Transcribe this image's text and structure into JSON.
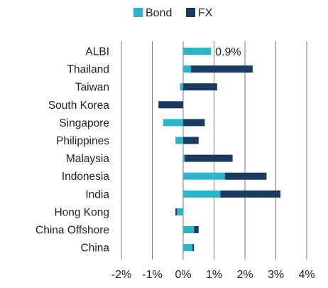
{
  "chart_data": {
    "type": "bar",
    "orientation": "horizontal",
    "stacked": true,
    "categories": [
      "ALBI",
      "Thailand",
      "Taiwan",
      "South Korea",
      "Singapore",
      "Philippines",
      "Malaysia",
      "Indonesia",
      "India",
      "Hong Kong",
      "China Offshore",
      "China"
    ],
    "series": [
      {
        "name": "Bond",
        "color": "#2cb5c8",
        "values": [
          0.9,
          0.25,
          -0.1,
          0.0,
          -0.65,
          -0.25,
          0.05,
          1.35,
          1.2,
          -0.2,
          0.35,
          0.3
        ]
      },
      {
        "name": "FX",
        "color": "#1b3a5f",
        "values": [
          0.0,
          2.0,
          1.1,
          -0.8,
          0.7,
          0.5,
          1.55,
          1.35,
          1.95,
          -0.05,
          0.15,
          0.05
        ]
      }
    ],
    "data_labels": [
      {
        "category": "ALBI",
        "text": "0.9%"
      }
    ],
    "xlim": [
      -2,
      4
    ],
    "xticks": [
      -2,
      -1,
      0,
      1,
      2,
      3,
      4
    ],
    "xtick_labels": [
      "-2%",
      "-1%",
      "0%",
      "1%",
      "2%",
      "3%",
      "4%"
    ],
    "grid": "vertical",
    "legend": "top-center",
    "title": "",
    "xlabel": "",
    "ylabel": ""
  }
}
